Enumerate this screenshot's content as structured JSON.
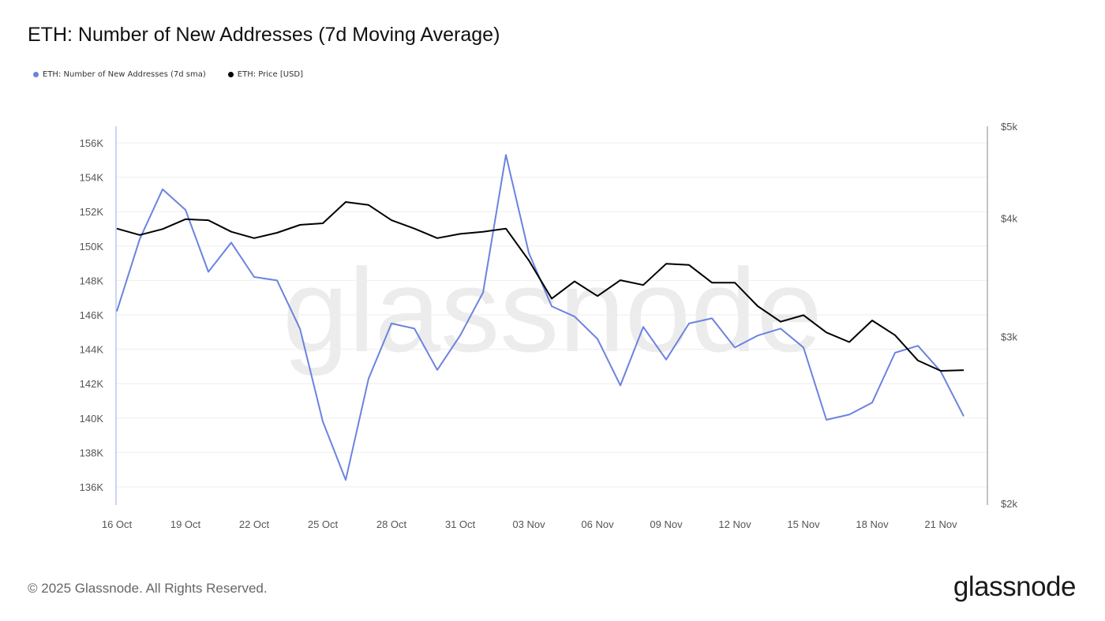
{
  "header": {
    "title": "ETH: Number of New Addresses (7d Moving Average)"
  },
  "footer": {
    "copyright": "© 2025 Glassnode. All Rights Reserved.",
    "logo": "glassnode"
  },
  "watermark": "glassnode",
  "chart_data": {
    "type": "line",
    "title": "ETH: Number of New Addresses (7d Moving Average)",
    "legend_placement": "top-left",
    "grid": true,
    "x": [
      "16 Oct",
      "17 Oct",
      "18 Oct",
      "19 Oct",
      "20 Oct",
      "21 Oct",
      "22 Oct",
      "23 Oct",
      "24 Oct",
      "25 Oct",
      "26 Oct",
      "27 Oct",
      "28 Oct",
      "29 Oct",
      "30 Oct",
      "31 Oct",
      "01 Nov",
      "02 Nov",
      "03 Nov",
      "04 Nov",
      "05 Nov",
      "06 Nov",
      "07 Nov",
      "08 Nov",
      "09 Nov",
      "10 Nov",
      "11 Nov",
      "12 Nov",
      "13 Nov",
      "14 Nov",
      "15 Nov",
      "16 Nov",
      "17 Nov",
      "18 Nov",
      "19 Nov",
      "20 Nov",
      "21 Nov",
      "22 Nov"
    ],
    "x_tick_labels": [
      "16 Oct",
      "19 Oct",
      "22 Oct",
      "25 Oct",
      "28 Oct",
      "31 Oct",
      "03 Nov",
      "06 Nov",
      "09 Nov",
      "12 Nov",
      "15 Nov",
      "18 Nov",
      "21 Nov"
    ],
    "y_left": {
      "ylim": [
        135000,
        157000
      ],
      "ticks": [
        136000,
        138000,
        140000,
        142000,
        144000,
        146000,
        148000,
        150000,
        152000,
        154000,
        156000
      ],
      "tick_labels": [
        "136K",
        "138K",
        "140K",
        "142K",
        "144K",
        "146K",
        "148K",
        "150K",
        "152K",
        "154K",
        "156K"
      ]
    },
    "y_right": {
      "scale": "log",
      "ylim": [
        2000,
        5000
      ],
      "ticks": [
        2000,
        3000,
        4000,
        5000
      ],
      "tick_labels": [
        "$2k",
        "$3k",
        "$4k",
        "$5k"
      ]
    },
    "series": [
      {
        "name": "ETH: Number of New Addresses (7d sma)",
        "axis": "left",
        "color": "#6b83e0",
        "values": [
          146200,
          150400,
          153300,
          152100,
          148500,
          150200,
          148200,
          148000,
          145200,
          139800,
          136400,
          142300,
          145500,
          145200,
          142800,
          144800,
          147300,
          155300,
          149600,
          146500,
          145900,
          144600,
          141900,
          145300,
          143400,
          145500,
          145800,
          144100,
          144800,
          145200,
          144100,
          139900,
          140200,
          140900,
          143800,
          144200,
          142700,
          140100
        ]
      },
      {
        "name": "ETH: Price [USD]",
        "axis": "right",
        "color": "#000000",
        "values": [
          3900,
          3840,
          3895,
          3990,
          3980,
          3870,
          3810,
          3860,
          3935,
          3950,
          4160,
          4130,
          3980,
          3900,
          3810,
          3850,
          3870,
          3900,
          3610,
          3290,
          3430,
          3310,
          3440,
          3400,
          3580,
          3570,
          3420,
          3420,
          3230,
          3110,
          3160,
          3030,
          2960,
          3120,
          3010,
          2830,
          2760,
          2765
        ]
      }
    ]
  }
}
